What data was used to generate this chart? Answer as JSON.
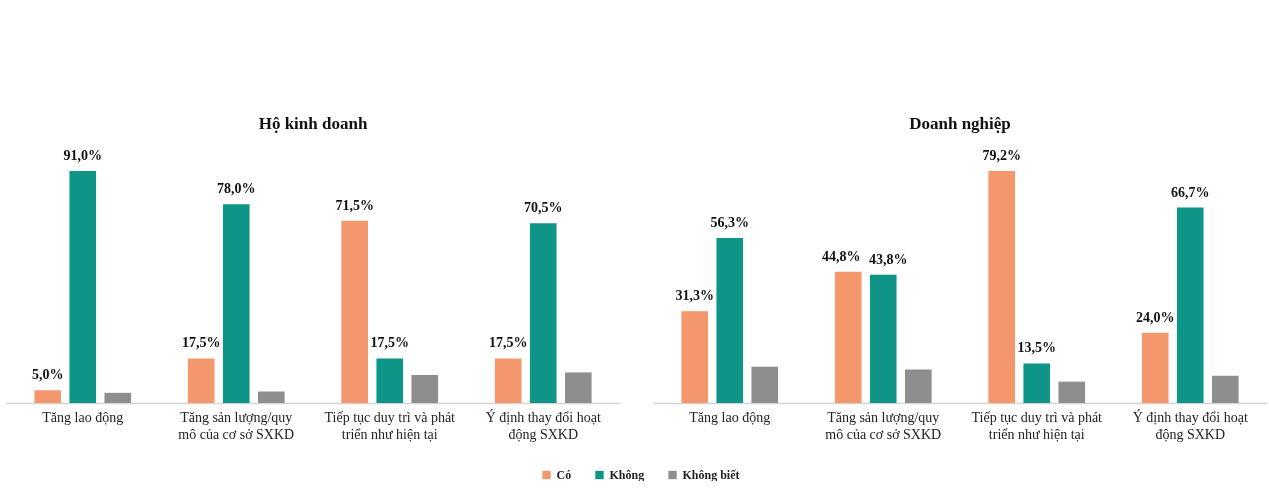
{
  "chart_data": [
    {
      "type": "bar",
      "title": "Hộ kinh doanh",
      "categories": [
        "Tăng lao động",
        "Tăng sản lượng/quy mô của cơ sở SXKD",
        "Tiếp tục duy trì và phát triển như hiện tại",
        "Ý định thay đổi hoạt động SXKD"
      ],
      "series": [
        {
          "name": "Có",
          "color": "#f4976c",
          "values": [
            5.0,
            17.5,
            71.5,
            17.5
          ],
          "value_labels": [
            "5,0%",
            "17,5%",
            "71,5%",
            "17,5%"
          ]
        },
        {
          "name": "Không",
          "color": "#0f9488",
          "values": [
            91.0,
            78.0,
            17.5,
            70.5
          ],
          "value_labels": [
            "91,0%",
            "78,0%",
            "17,5%",
            "70,5%"
          ]
        },
        {
          "name": "Không biết",
          "color": "#8e8e8e",
          "values": [
            4.0,
            4.5,
            11.0,
            12.0
          ]
        }
      ],
      "legend": "bottom",
      "tick_labels": "x"
    },
    {
      "type": "bar",
      "title": "Doanh nghiệp",
      "categories": [
        "Tăng lao động",
        "Tăng sản lượng/quy mô của cơ sở SXKD",
        "Tiếp tục duy trì và phát triển như hiện tại",
        "Ý định thay đổi hoạt động SXKD"
      ],
      "series": [
        {
          "name": "Có",
          "color": "#f4976c",
          "values": [
            31.3,
            44.8,
            79.2,
            24.0
          ],
          "value_labels": [
            "31,3%",
            "44,8%",
            "79,2%",
            "24,0%"
          ]
        },
        {
          "name": "Không",
          "color": "#0f9488",
          "values": [
            56.3,
            43.8,
            13.5,
            66.7
          ],
          "value_labels": [
            "56,3%",
            "43,8%",
            "13,5%",
            "66,7%"
          ]
        },
        {
          "name": "Không biết",
          "color": "#8e8e8e",
          "values": [
            12.4,
            11.4,
            7.3,
            9.3
          ]
        }
      ],
      "tick_labels": "x"
    }
  ]
}
